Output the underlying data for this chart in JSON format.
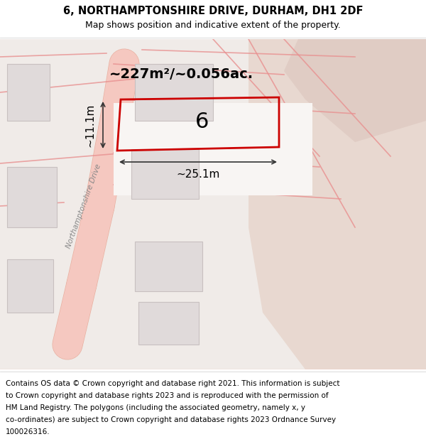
{
  "title_line1": "6, NORTHAMPTONSHIRE DRIVE, DURHAM, DH1 2DF",
  "title_line2": "Map shows position and indicative extent of the property.",
  "area_label": "~227m²/~0.056ac.",
  "width_label": "~25.1m",
  "height_label": "~11.1m",
  "plot_number": "6",
  "footer_text": "Contains OS data © Crown copyright and database right 2021. This information is subject to Crown copyright and database rights 2023 and is reproduced with the permission of HM Land Registry. The polygons (including the associated geometry, namely x, y co-ordinates) are subject to Crown copyright and database rights 2023 Ordnance Survey 100026316.",
  "bg_color": "#f5f0ee",
  "map_bg": "#f0ebe8",
  "road_color": "#f5c8c0",
  "road_outline": "#e8a090",
  "building_fill": "#e0dada",
  "building_outline": "#c8c0c0",
  "plot_outline": "#cc0000",
  "white_area": "#ffffff",
  "header_bg": "#ffffff",
  "footer_bg": "#ffffff",
  "dim_line_color": "#333333",
  "street_label": "Northamptonshire Drive"
}
